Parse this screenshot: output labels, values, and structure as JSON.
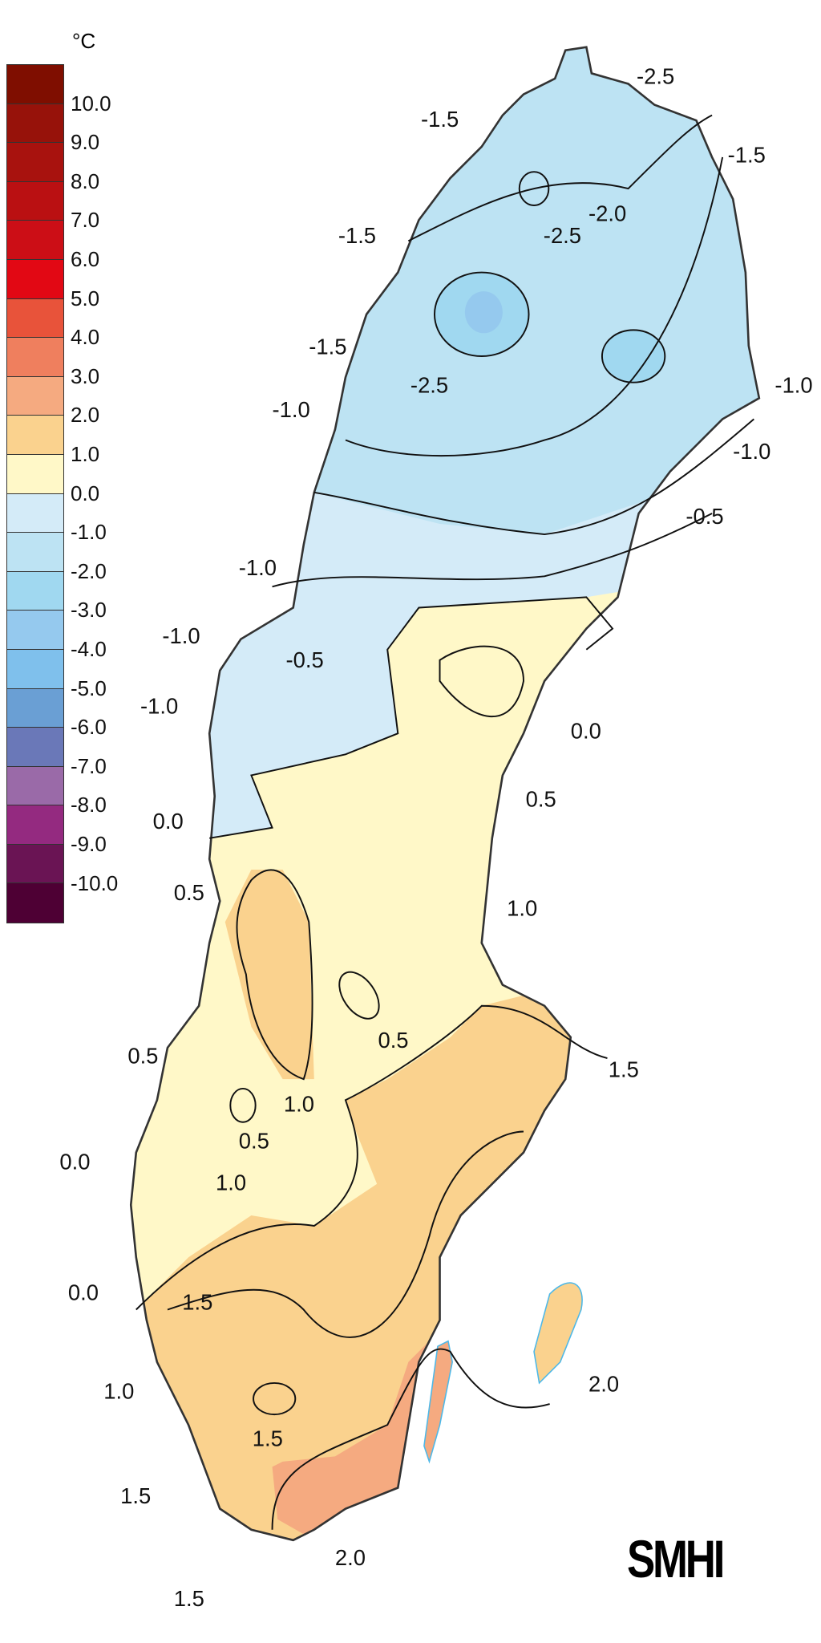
{
  "legend": {
    "unit": "°C",
    "labels": [
      "10.0",
      "9.0",
      "8.0",
      "7.0",
      "6.0",
      "5.0",
      "4.0",
      "3.0",
      "2.0",
      "1.0",
      "0.0",
      "-1.0",
      "-2.0",
      "-3.0",
      "-4.0",
      "-5.0",
      "-6.0",
      "-7.0",
      "-8.0",
      "-9.0",
      "-10.0"
    ],
    "colors": [
      "#7f0e00",
      "#97120a",
      "#a8120e",
      "#ba1012",
      "#cc0e16",
      "#e20814",
      "#e8533a",
      "#ef7f5e",
      "#f5aa80",
      "#fad28e",
      "#fff8c8",
      "#d4ebf8",
      "#bde3f3",
      "#a0d8f0",
      "#95c9ee",
      "#7fc0ec",
      "#6a9fd4",
      "#6a78b8",
      "#9a6aa8",
      "#942a80",
      "#6a1454",
      "#4e0034"
    ]
  },
  "map": {
    "region": "Sweden",
    "contour_labels": [
      "-2.5",
      "-1.5",
      "-1.5",
      "-2.0",
      "-2.5",
      "-1.5",
      "-1.5",
      "-2.5",
      "-1.0",
      "-1.0",
      "-1.0",
      "-0.5",
      "-1.0",
      "-1.0",
      "-0.5",
      "-1.0",
      "0.0",
      "0.5",
      "0.0",
      "0.5",
      "1.0",
      "0.5",
      "1.5",
      "0.5",
      "1.0",
      "0.5",
      "0.0",
      "1.0",
      "0.0",
      "1.5",
      "1.0",
      "2.0",
      "1.5",
      "1.5",
      "2.0",
      "1.5"
    ]
  },
  "logo": "SMHI"
}
